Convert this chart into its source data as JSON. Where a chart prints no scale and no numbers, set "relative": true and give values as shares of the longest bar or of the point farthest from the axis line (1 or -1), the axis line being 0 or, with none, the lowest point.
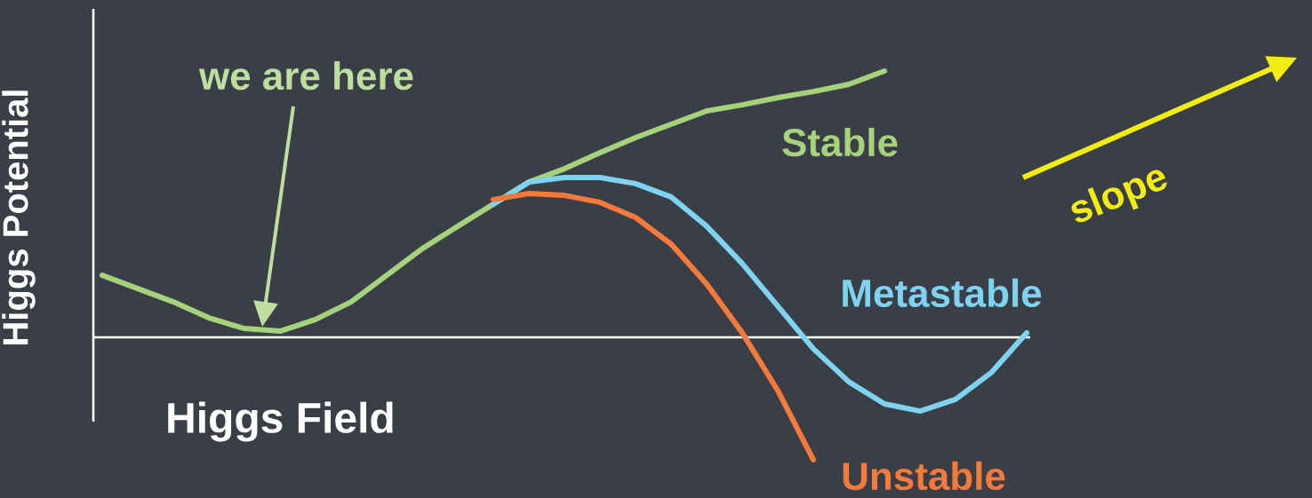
{
  "chart_data": {
    "type": "line",
    "relative": true,
    "xlabel": "Higgs Field",
    "ylabel": "Higgs Potential",
    "categories": [
      null,
      null,
      null,
      null,
      null,
      null,
      null,
      null,
      null,
      null,
      null,
      null,
      null,
      null,
      null,
      null,
      null,
      null,
      null,
      null,
      null,
      null,
      null,
      null,
      null,
      null,
      null
    ],
    "series": [
      {
        "name": "Stable",
        "color": "#a6d27c",
        "values": [
          0.233,
          0.183,
          0.133,
          0.073,
          0.033,
          0.023,
          0.067,
          0.133,
          0.233,
          0.333,
          0.417,
          0.5,
          0.583,
          0.633,
          0.693,
          0.75,
          0.8,
          0.85,
          0.873,
          0.9,
          0.923,
          0.95,
          1.0,
          null,
          null,
          null,
          null
        ]
      },
      {
        "name": "Metastable",
        "color": "#7fd3f0",
        "values": [
          null,
          null,
          null,
          null,
          null,
          null,
          null,
          null,
          null,
          null,
          null,
          0.5,
          0.583,
          0.6,
          0.6,
          0.577,
          0.527,
          0.417,
          0.277,
          0.117,
          -0.043,
          -0.167,
          -0.25,
          -0.277,
          -0.233,
          -0.133,
          0.017
        ]
      },
      {
        "name": "Unstable",
        "color": "#f47a3c",
        "values": [
          null,
          null,
          null,
          null,
          null,
          null,
          null,
          null,
          null,
          null,
          null,
          0.517,
          0.54,
          0.533,
          0.507,
          0.45,
          0.35,
          0.2,
          0.017,
          -0.2,
          -0.46,
          null,
          null,
          null,
          null,
          null,
          null
        ]
      }
    ],
    "annotations": [
      "we are here",
      "slope"
    ],
    "marker": "none",
    "line_style": "solid"
  }
}
